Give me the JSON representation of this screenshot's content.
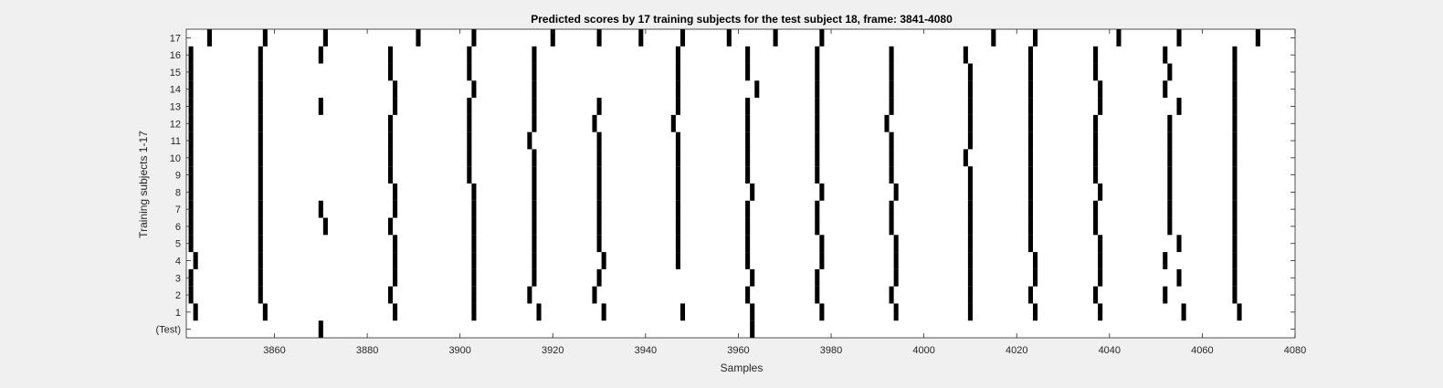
{
  "chart_data": {
    "type": "scatter",
    "title": "Predicted scores by 17 training subjects for the test subject 18, frame: 3841-4080",
    "xlabel": "Samples",
    "ylabel": "Training subjects 1-17",
    "xlim": [
      3841,
      4080
    ],
    "ylim": [
      -0.5,
      17.5
    ],
    "x_ticks": [
      3860,
      3880,
      3900,
      3920,
      3940,
      3960,
      3980,
      4000,
      4020,
      4040,
      4060,
      4080
    ],
    "y_tick_labels": [
      "(Test)",
      "1",
      "2",
      "3",
      "4",
      "5",
      "6",
      "7",
      "8",
      "9",
      "10",
      "11",
      "12",
      "13",
      "14",
      "15",
      "16",
      "17"
    ],
    "grid": false,
    "marker": "black vertical bar, 1 sample wide",
    "color": "#000000",
    "rows": [
      {
        "label": "(Test)",
        "x": [
          3870,
          3963
        ]
      },
      {
        "label": "1",
        "x": [
          3843,
          3858,
          3886,
          3903,
          3917,
          3931,
          3948,
          3963,
          3978,
          3994,
          4010,
          4024,
          4038,
          4056,
          4068
        ]
      },
      {
        "label": "2",
        "x": [
          3842,
          3857,
          3885,
          3903,
          3915,
          3929,
          3962,
          3977,
          3993,
          4010,
          4023,
          4037,
          4052,
          4067
        ]
      },
      {
        "label": "3",
        "x": [
          3842,
          3857,
          3886,
          3903,
          3916,
          3930,
          3963,
          3977,
          3994,
          4010,
          4024,
          4038,
          4055,
          4067
        ]
      },
      {
        "label": "4",
        "x": [
          3843,
          3857,
          3886,
          3903,
          3916,
          3931,
          3947,
          3962,
          3978,
          3994,
          4010,
          4024,
          4038,
          4052,
          4067
        ]
      },
      {
        "label": "5",
        "x": [
          3842,
          3857,
          3886,
          3903,
          3916,
          3930,
          3947,
          3962,
          3978,
          3994,
          4010,
          4023,
          4038,
          4055,
          4067
        ]
      },
      {
        "label": "6",
        "x": [
          3842,
          3857,
          3871,
          3885,
          3903,
          3916,
          3930,
          3947,
          3962,
          3977,
          3993,
          4010,
          4023,
          4037,
          4053,
          4067
        ]
      },
      {
        "label": "7",
        "x": [
          3842,
          3857,
          3870,
          3886,
          3903,
          3916,
          3930,
          3947,
          3962,
          3977,
          3993,
          4010,
          4023,
          4037,
          4053,
          4067
        ]
      },
      {
        "label": "8",
        "x": [
          3842,
          3857,
          3886,
          3903,
          3916,
          3930,
          3947,
          3963,
          3978,
          3994,
          4010,
          4023,
          4038,
          4053,
          4067
        ]
      },
      {
        "label": "9",
        "x": [
          3842,
          3857,
          3885,
          3902,
          3916,
          3930,
          3947,
          3962,
          3977,
          3993,
          4010,
          4023,
          4037,
          4053,
          4067
        ]
      },
      {
        "label": "10",
        "x": [
          3842,
          3857,
          3885,
          3902,
          3916,
          3930,
          3947,
          3962,
          3977,
          3993,
          4009,
          4023,
          4037,
          4053,
          4067
        ]
      },
      {
        "label": "11",
        "x": [
          3842,
          3857,
          3885,
          3902,
          3915,
          3930,
          3947,
          3962,
          3977,
          3993,
          4010,
          4023,
          4037,
          4053,
          4067
        ]
      },
      {
        "label": "12",
        "x": [
          3842,
          3857,
          3885,
          3902,
          3916,
          3929,
          3946,
          3962,
          3977,
          3992,
          4010,
          4023,
          4037,
          4053,
          4067
        ]
      },
      {
        "label": "13",
        "x": [
          3842,
          3857,
          3870,
          3886,
          3902,
          3916,
          3930,
          3947,
          3962,
          3977,
          3993,
          4010,
          4023,
          4038,
          4055,
          4067
        ]
      },
      {
        "label": "14",
        "x": [
          3842,
          3857,
          3886,
          3903,
          3916,
          3947,
          3964,
          3977,
          3993,
          4010,
          4023,
          4038,
          4052,
          4067
        ]
      },
      {
        "label": "15",
        "x": [
          3842,
          3857,
          3885,
          3902,
          3916,
          3947,
          3962,
          3977,
          3993,
          4010,
          4023,
          4037,
          4053,
          4067
        ]
      },
      {
        "label": "16",
        "x": [
          3842,
          3857,
          3870,
          3885,
          3902,
          3916,
          3947,
          3962,
          3977,
          3993,
          4009,
          4023,
          4037,
          4052,
          4067
        ]
      },
      {
        "label": "17",
        "x": [
          3846,
          3858,
          3871,
          3891,
          3903,
          3920,
          3930,
          3939,
          3948,
          3958,
          3968,
          3978,
          4015,
          4024,
          4042,
          4055,
          4072
        ]
      }
    ]
  }
}
